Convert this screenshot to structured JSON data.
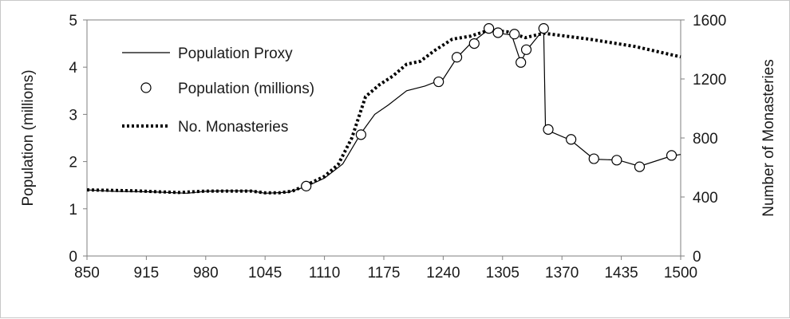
{
  "chart_data": {
    "type": "line",
    "xlabel": "",
    "ylabel": "Population (millions)",
    "y2label": "Number of Monasteries",
    "xlim": [
      850,
      1500
    ],
    "ylim": [
      0,
      5
    ],
    "y2lim": [
      0,
      1600
    ],
    "x_ticks": [
      "850",
      "915",
      "980",
      "1045",
      "1110",
      "1175",
      "1240",
      "1305",
      "1370",
      "1435",
      "1500"
    ],
    "y_ticks": [
      "0",
      "1",
      "2",
      "3",
      "4",
      "5"
    ],
    "y2_ticks": [
      "0",
      "400",
      "800",
      "1200",
      "1600"
    ],
    "grid": false,
    "legend_position": "top-left",
    "series": [
      {
        "name": "Population Proxy",
        "style": "solid-line",
        "axis": "left",
        "color": "#000000",
        "x": [
          850,
          880,
          920,
          960,
          980,
          1000,
          1030,
          1045,
          1070,
          1090,
          1110,
          1130,
          1150,
          1165,
          1180,
          1200,
          1220,
          1240,
          1255,
          1270,
          1290,
          1300,
          1315,
          1325,
          1331,
          1350,
          1352,
          1380,
          1405,
          1432,
          1455,
          1490,
          1500
        ],
        "values": [
          1.4,
          1.37,
          1.36,
          1.33,
          1.37,
          1.38,
          1.38,
          1.33,
          1.35,
          1.47,
          1.65,
          1.95,
          2.6,
          3.0,
          3.2,
          3.5,
          3.6,
          3.75,
          4.2,
          4.5,
          4.8,
          4.72,
          4.68,
          4.1,
          4.35,
          4.8,
          2.68,
          2.45,
          2.05,
          2.03,
          1.9,
          2.12,
          2.15
        ]
      },
      {
        "name": "Population (millions)",
        "style": "markers",
        "axis": "left",
        "color": "#000000",
        "x": [
          1090,
          1150,
          1235,
          1255,
          1274,
          1290,
          1300,
          1318,
          1325,
          1331,
          1350,
          1355,
          1380,
          1405,
          1430,
          1455,
          1490
        ],
        "values": [
          1.48,
          2.57,
          3.69,
          4.21,
          4.5,
          4.82,
          4.73,
          4.7,
          4.1,
          4.37,
          4.82,
          2.68,
          2.47,
          2.06,
          2.03,
          1.89,
          2.13
        ]
      },
      {
        "name": "No. Monasteries",
        "style": "dotted-line",
        "axis": "right",
        "color": "#000000",
        "x": [
          850,
          900,
          950,
          980,
          1000,
          1030,
          1045,
          1060,
          1075,
          1090,
          1110,
          1125,
          1140,
          1155,
          1170,
          1185,
          1200,
          1215,
          1230,
          1250,
          1270,
          1290,
          1310,
          1330,
          1350,
          1400,
          1450,
          1500
        ],
        "values": [
          448,
          442,
          430,
          440,
          440,
          440,
          428,
          428,
          440,
          480,
          540,
          620,
          800,
          1080,
          1160,
          1220,
          1300,
          1320,
          1390,
          1470,
          1490,
          1530,
          1520,
          1480,
          1510,
          1470,
          1420,
          1350
        ]
      }
    ]
  }
}
